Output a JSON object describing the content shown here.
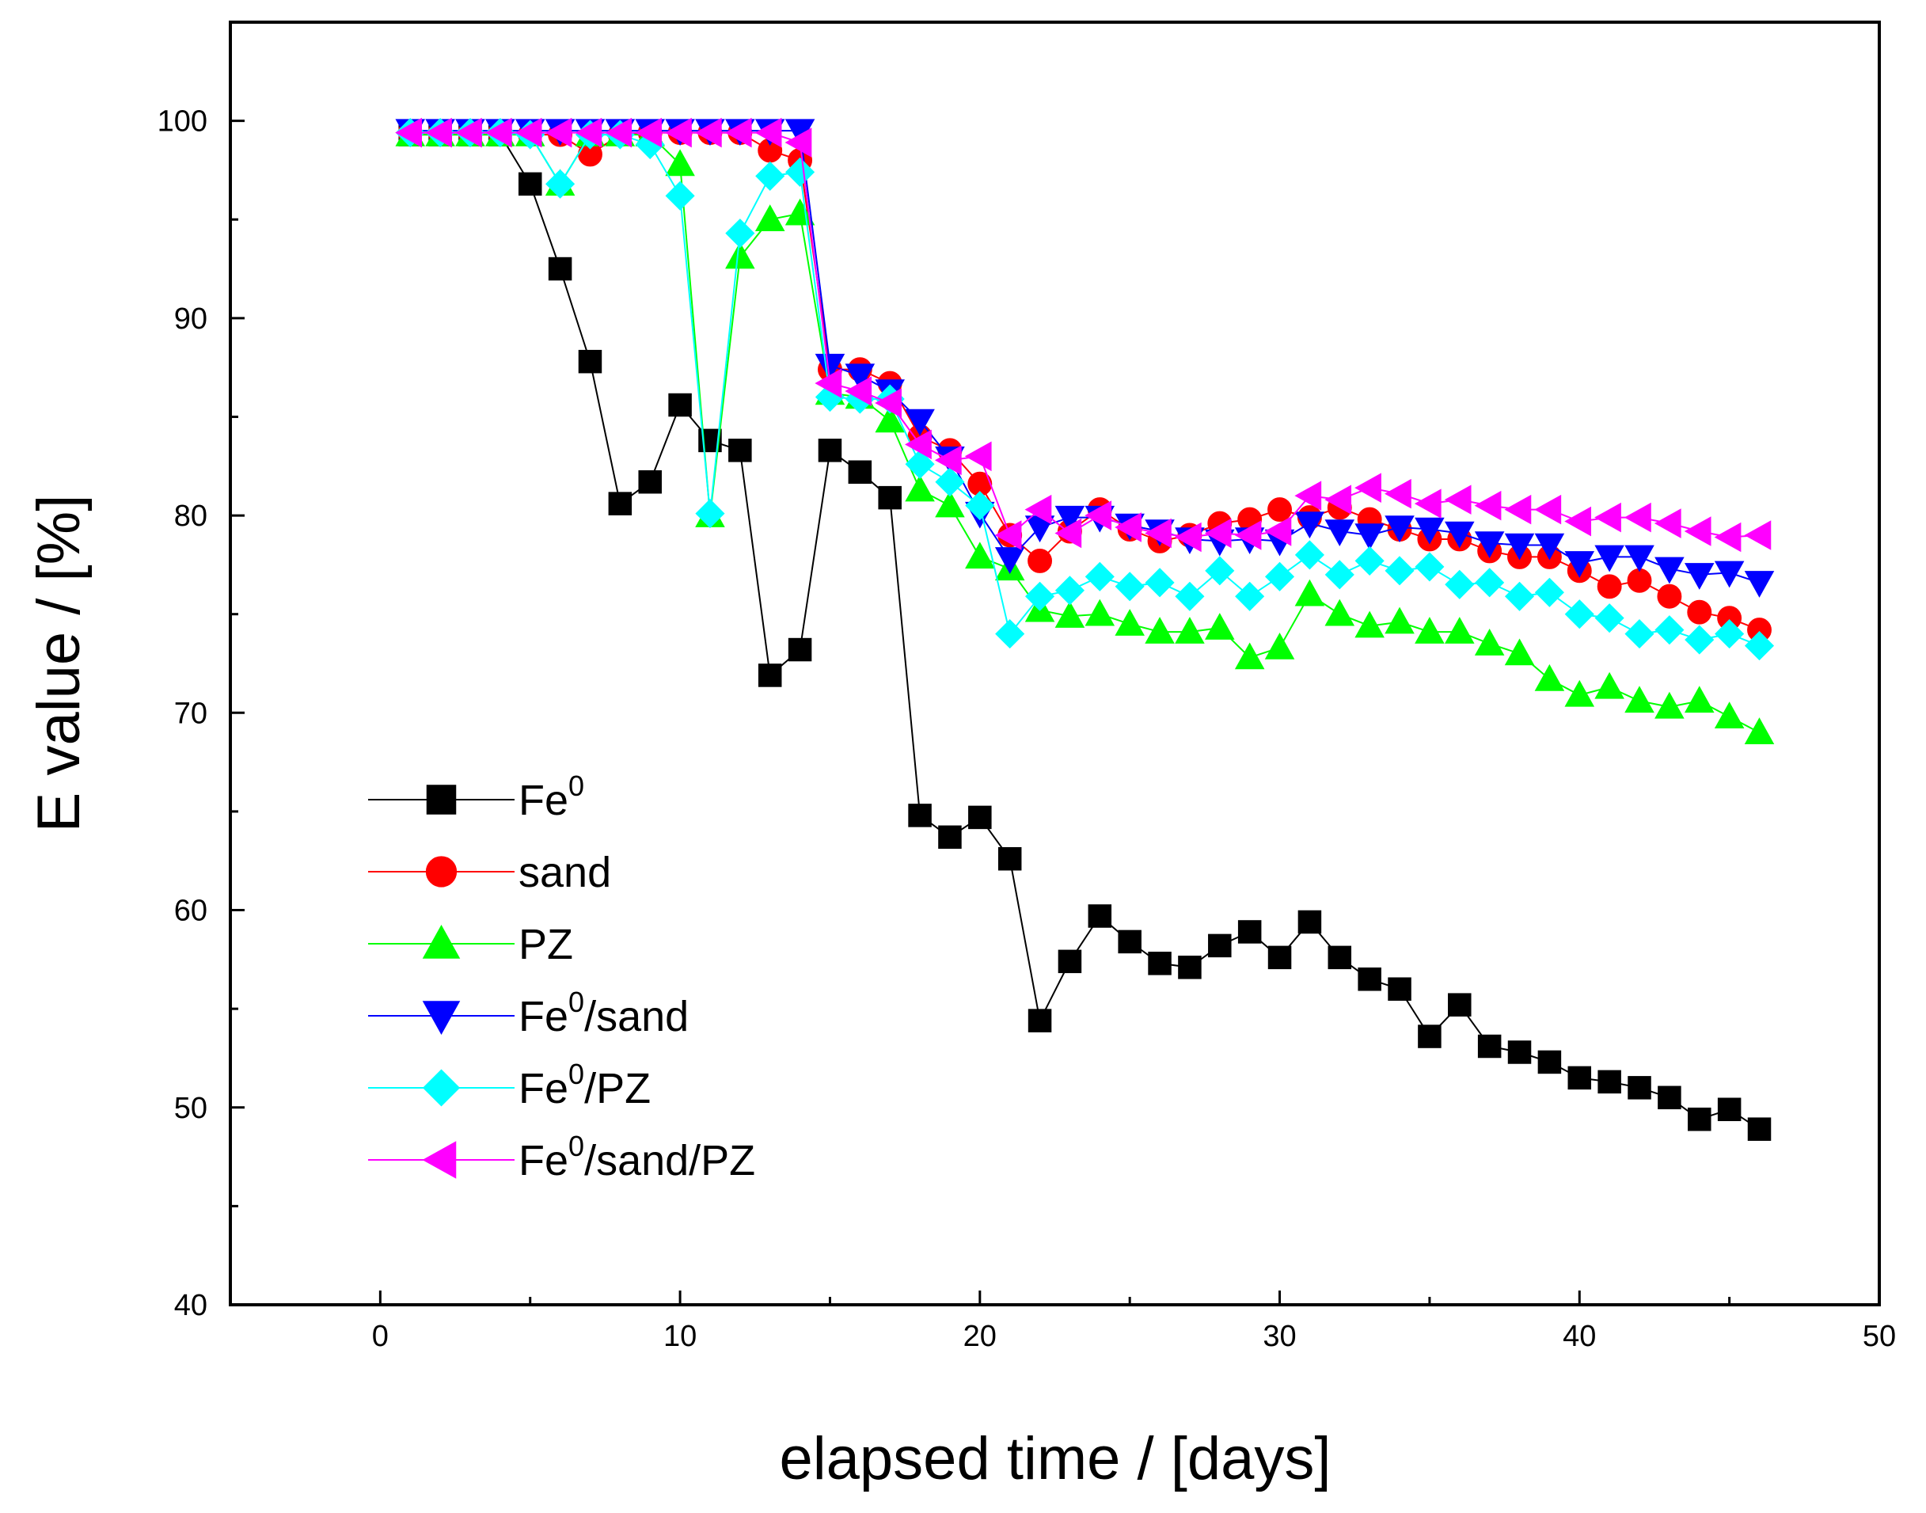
{
  "chart_data": {
    "type": "line",
    "title": "",
    "xlabel": "elapsed time / [days]",
    "ylabel": "E value / [%]",
    "xlim": [
      -5,
      50
    ],
    "ylim": [
      40,
      105
    ],
    "xticks": [
      0,
      10,
      20,
      30,
      40,
      50
    ],
    "yticks": [
      40,
      50,
      60,
      70,
      80,
      90,
      100
    ],
    "xtick_labels": [
      "0",
      "10",
      "20",
      "30",
      "40",
      "50"
    ],
    "ytick_labels": [
      "40",
      "50",
      "60",
      "70",
      "80",
      "90",
      "100"
    ],
    "grid": false,
    "legend_position": "bottom-left",
    "x": [
      1,
      2,
      3,
      4,
      5,
      6,
      7,
      8,
      9,
      10,
      11,
      12,
      13,
      14,
      15,
      16,
      17,
      18,
      19,
      20,
      21,
      22,
      23,
      24,
      25,
      26,
      27,
      28,
      29,
      30,
      31,
      32,
      33,
      34,
      35,
      36,
      37,
      38,
      39,
      40,
      41,
      42,
      43,
      44,
      45,
      46
    ],
    "series": [
      {
        "name": "Fe0",
        "label_base": "Fe",
        "label_sup": "0",
        "label_rest": "",
        "color": "#000000",
        "marker": "square",
        "values": [
          99.3,
          99.3,
          99.3,
          99.3,
          96.8,
          92.5,
          87.8,
          80.6,
          81.7,
          85.6,
          83.8,
          83.3,
          71.9,
          73.2,
          83.3,
          82.2,
          80.9,
          64.8,
          63.7,
          64.7,
          62.6,
          54.4,
          57.4,
          59.7,
          58.4,
          57.3,
          57.1,
          58.2,
          58.9,
          57.6,
          59.4,
          57.6,
          56.5,
          56.0,
          53.6,
          55.2,
          53.1,
          52.8,
          52.3,
          51.5,
          51.3,
          51.0,
          50.5,
          49.4,
          49.9,
          48.9
        ]
      },
      {
        "name": "sand",
        "label_base": "sand",
        "label_sup": "",
        "label_rest": "",
        "color": "#ff0000",
        "marker": "circle",
        "values": [
          99.4,
          99.4,
          99.4,
          99.4,
          99.3,
          99.3,
          98.3,
          99.3,
          99.4,
          99.4,
          99.4,
          99.4,
          98.5,
          98.0,
          87.4,
          87.4,
          86.7,
          84.0,
          83.3,
          81.6,
          79.0,
          77.7,
          79.2,
          80.3,
          79.3,
          78.7,
          79.0,
          79.6,
          79.8,
          80.3,
          79.9,
          80.4,
          79.8,
          79.3,
          78.8,
          78.8,
          78.2,
          77.9,
          77.9,
          77.2,
          76.4,
          76.7,
          75.9,
          75.1,
          74.8,
          74.2
        ]
      },
      {
        "name": "PZ",
        "label_base": "PZ",
        "label_sup": "",
        "label_rest": "",
        "color": "#00ff00",
        "marker": "triangle-up",
        "values": [
          99.3,
          99.3,
          99.3,
          99.3,
          99.3,
          96.8,
          99.3,
          99.3,
          99.3,
          97.8,
          80.0,
          93.1,
          95.0,
          95.3,
          86.2,
          86.0,
          84.8,
          81.3,
          80.5,
          77.9,
          77.3,
          75.2,
          74.9,
          75.0,
          74.5,
          74.1,
          74.1,
          74.3,
          72.8,
          73.3,
          76.0,
          75.0,
          74.4,
          74.6,
          74.1,
          74.1,
          73.5,
          73.0,
          71.7,
          70.9,
          71.3,
          70.6,
          70.3,
          70.6,
          69.8,
          69.0
        ]
      },
      {
        "name": "Fe0/sand",
        "label_base": "Fe",
        "label_sup": "0",
        "label_rest": "/sand",
        "color": "#0000ff",
        "marker": "triangle-down",
        "values": [
          99.5,
          99.5,
          99.5,
          99.5,
          99.5,
          99.5,
          99.5,
          99.5,
          99.5,
          99.5,
          99.5,
          99.5,
          99.5,
          99.5,
          87.6,
          87.1,
          86.3,
          84.8,
          82.9,
          80.1,
          77.8,
          79.4,
          79.9,
          79.9,
          79.5,
          79.2,
          78.8,
          78.7,
          78.8,
          78.7,
          79.6,
          79.2,
          79.0,
          79.4,
          79.3,
          79.1,
          78.6,
          78.5,
          78.5,
          77.6,
          77.9,
          77.9,
          77.3,
          77.0,
          77.1,
          76.6
        ]
      },
      {
        "name": "Fe0/PZ",
        "label_base": "Fe",
        "label_sup": "0",
        "label_rest": "/PZ",
        "color": "#00ffff",
        "marker": "diamond",
        "values": [
          99.4,
          99.4,
          99.4,
          99.4,
          99.3,
          96.8,
          99.3,
          99.3,
          98.8,
          96.2,
          80.1,
          94.3,
          97.2,
          97.4,
          86.0,
          85.9,
          85.9,
          82.6,
          81.7,
          80.5,
          74.0,
          75.9,
          76.2,
          76.9,
          76.4,
          76.6,
          75.9,
          77.2,
          75.9,
          76.9,
          78.0,
          77.0,
          77.7,
          77.2,
          77.4,
          76.5,
          76.6,
          75.9,
          76.1,
          75.0,
          74.8,
          74.0,
          74.2,
          73.7,
          74.0,
          73.4
        ]
      },
      {
        "name": "Fe0/sand/PZ",
        "label_base": "Fe",
        "label_sup": "0",
        "label_rest": "/sand/PZ",
        "color": "#ff00ff",
        "marker": "triangle-left",
        "values": [
          99.4,
          99.4,
          99.4,
          99.4,
          99.4,
          99.4,
          99.4,
          99.4,
          99.4,
          99.4,
          99.4,
          99.4,
          99.4,
          98.9,
          86.7,
          86.3,
          85.7,
          83.6,
          82.8,
          83.0,
          79.0,
          80.3,
          79.1,
          80.0,
          79.4,
          79.1,
          78.9,
          79.1,
          79.0,
          79.2,
          81.0,
          80.8,
          81.4,
          81.1,
          80.6,
          80.8,
          80.5,
          80.3,
          80.3,
          79.7,
          79.9,
          79.9,
          79.6,
          79.2,
          78.9,
          79.0
        ]
      }
    ]
  }
}
